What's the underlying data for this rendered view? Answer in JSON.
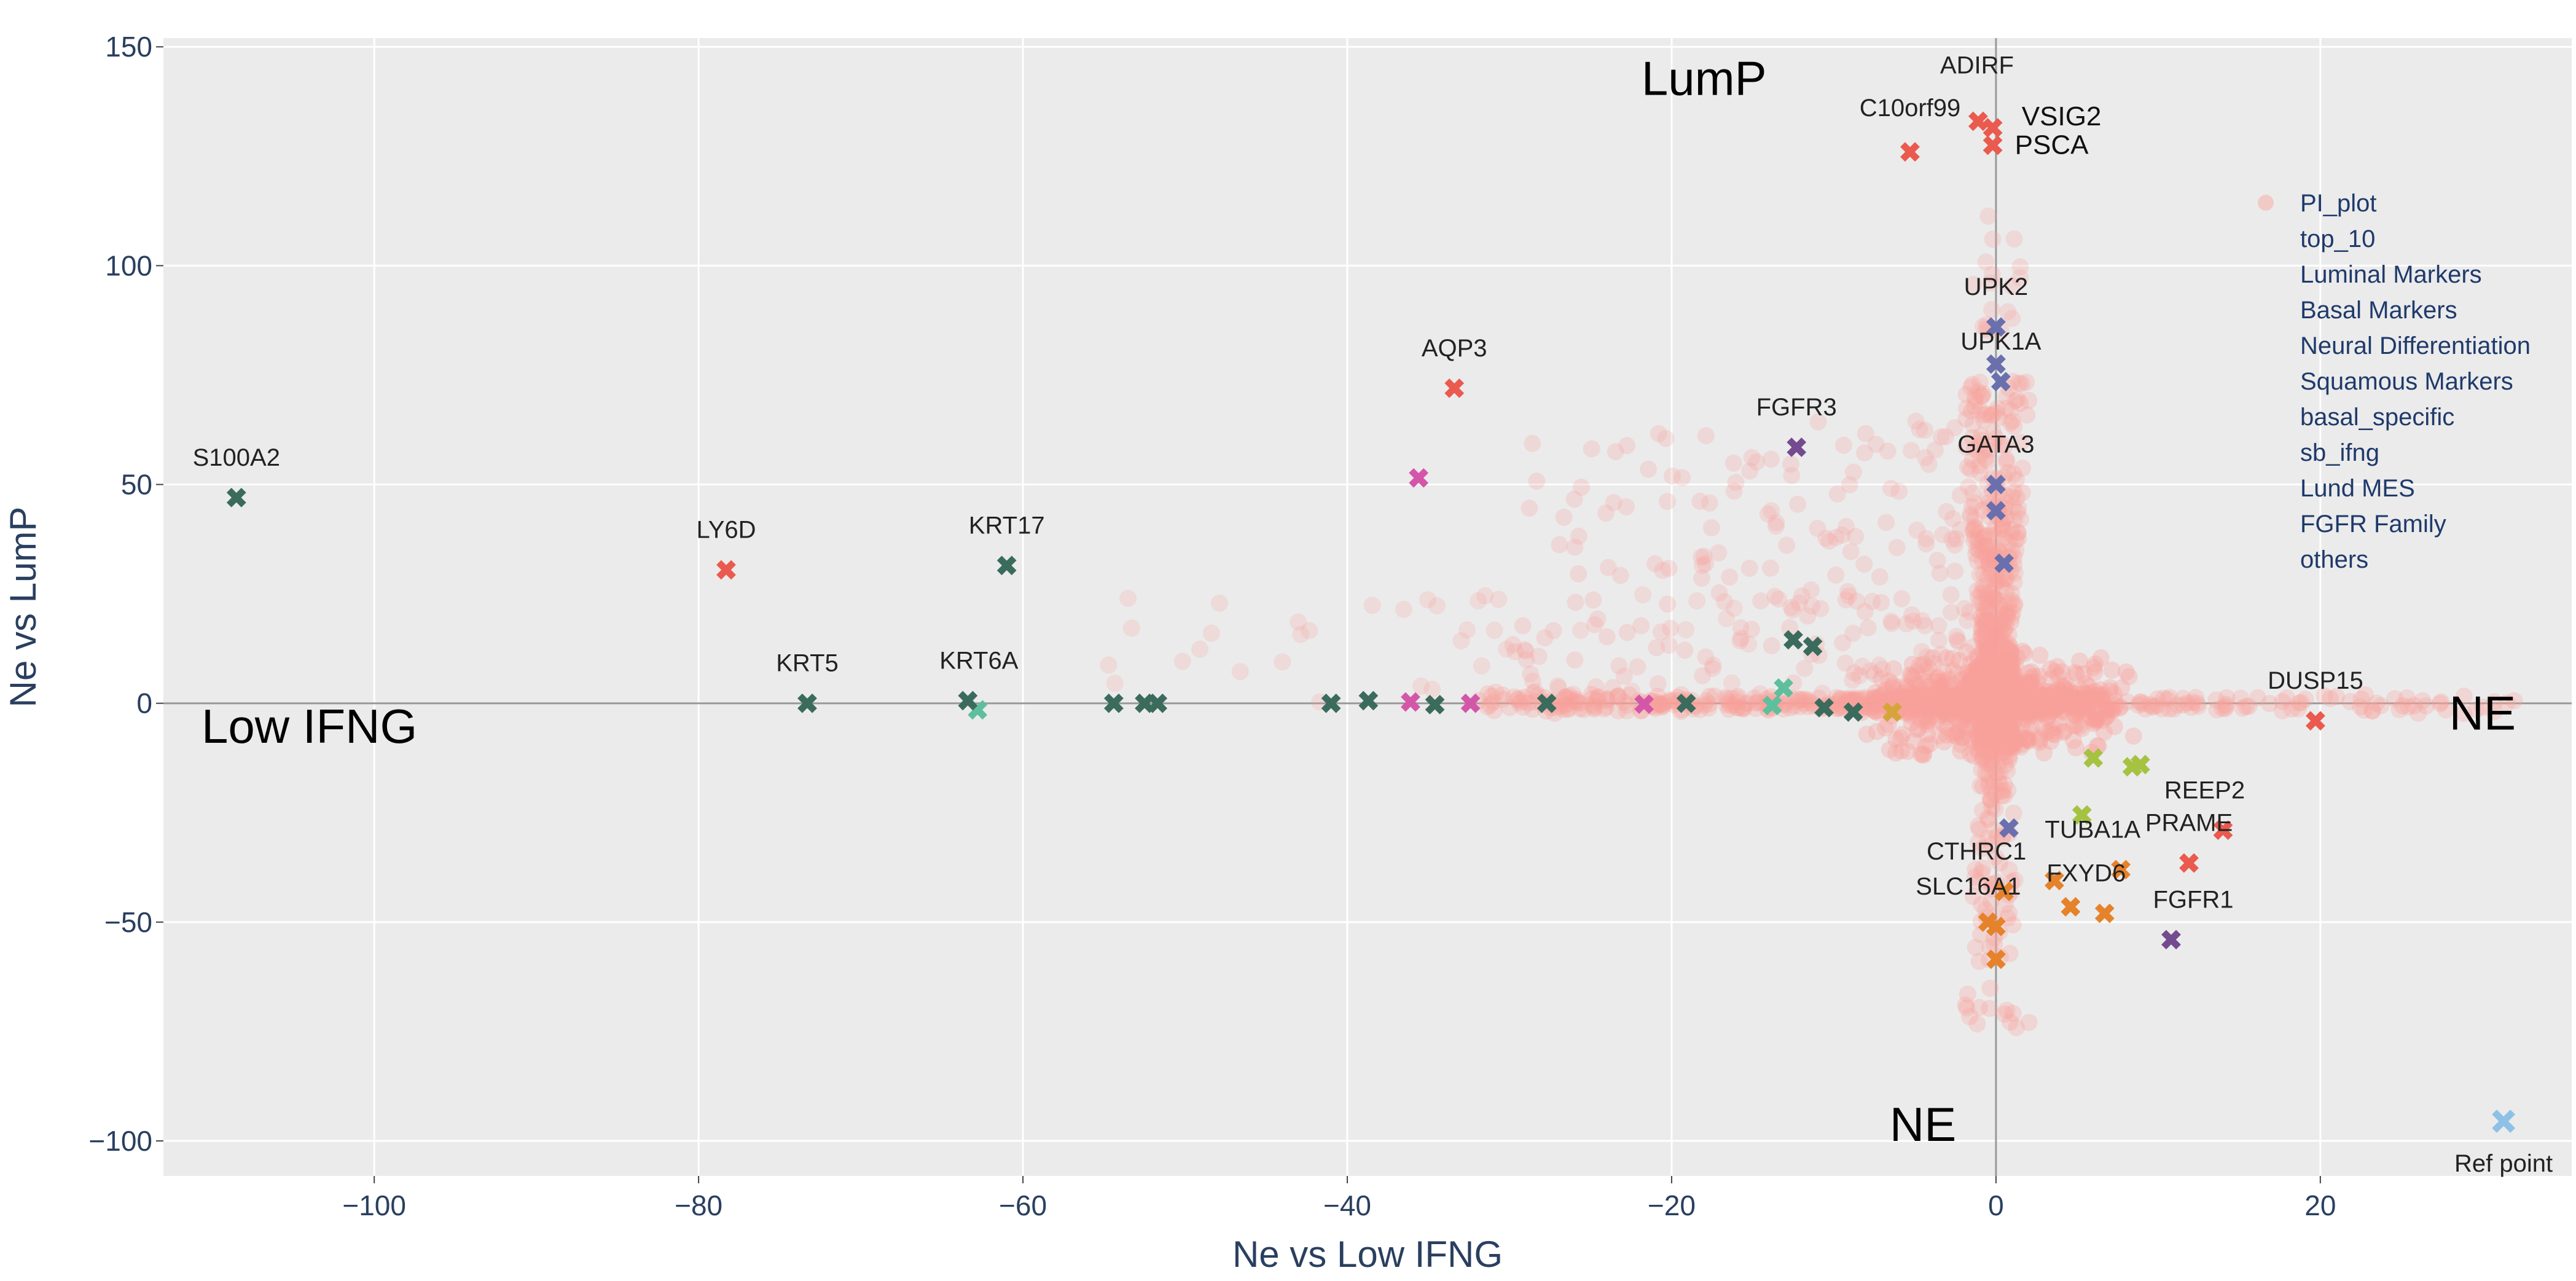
{
  "chart_data": {
    "type": "scatter",
    "xlabel": "Ne vs Low IFNG",
    "ylabel": "Ne vs LumP",
    "xlim": [
      -113,
      35.5
    ],
    "ylim": [
      -108,
      152
    ],
    "xticks": [
      -100,
      -80,
      -60,
      -40,
      -20,
      0,
      20
    ],
    "yticks": [
      -100,
      -50,
      0,
      50,
      100,
      150
    ],
    "grid": true,
    "legend_position": "right",
    "region_labels": [
      {
        "text": "LumP",
        "x": -18,
        "y": 139
      },
      {
        "text": "Low IFNG",
        "x": -104,
        "y": -9
      },
      {
        "text": "NE",
        "x": 30,
        "y": -6
      },
      {
        "text": "NE",
        "x": -4.5,
        "y": -100
      }
    ],
    "colors": {
      "PI_plot": "#f8a19a",
      "top_10": "#e6822a",
      "Luminal Markers": "#6a6fae",
      "Basal Markers": "#5dbf9e",
      "Neural Differentiation": "#a5c240",
      "Squamous Markers": "#d456a9",
      "basal_specific": "#3b6b5c",
      "sb_ifng": "#d6a53a",
      "Lund MES": "#3a8bc4",
      "FGFR Family": "#744b8e",
      "others": "#ea5a4e"
    },
    "legend": [
      "PI_plot",
      "top_10",
      "Luminal Markers",
      "Basal Markers",
      "Neural Differentiation",
      "Squamous Markers",
      "basal_specific",
      "sb_ifng",
      "Lund MES",
      "FGFR Family",
      "others"
    ],
    "series": [
      {
        "name": "top_10",
        "points": [
          {
            "x": 0,
            "y": -58.5
          },
          {
            "x": 0,
            "y": -51
          },
          {
            "x": 0.5,
            "y": -43
          },
          {
            "x": 3.6,
            "y": -40.5
          },
          {
            "x": 4.6,
            "y": -46.5
          },
          {
            "x": 6.7,
            "y": -48
          },
          {
            "x": 7.7,
            "y": -38
          },
          {
            "x": -0.5,
            "y": -50
          }
        ]
      },
      {
        "name": "Luminal Markers",
        "points": [
          {
            "x": 0,
            "y": 86
          },
          {
            "x": 0,
            "y": 77.5
          },
          {
            "x": 0.3,
            "y": 73.5
          },
          {
            "x": 0,
            "y": 50
          },
          {
            "x": 0,
            "y": 44
          },
          {
            "x": 0.5,
            "y": 32
          },
          {
            "x": 0.8,
            "y": -28.5
          }
        ]
      },
      {
        "name": "Basal Markers",
        "points": [
          {
            "x": -62.8,
            "y": -1.5
          },
          {
            "x": -13.1,
            "y": 3.5
          },
          {
            "x": -13.8,
            "y": -0.5
          }
        ]
      },
      {
        "name": "Neural Differentiation",
        "points": [
          {
            "x": 5.3,
            "y": -25.5
          },
          {
            "x": 6,
            "y": -12.5
          },
          {
            "x": 8.4,
            "y": -14.5
          },
          {
            "x": 8.9,
            "y": -14
          }
        ]
      },
      {
        "name": "Squamous Markers",
        "points": [
          {
            "x": -35.6,
            "y": 51.5
          },
          {
            "x": -36.1,
            "y": 0.3
          },
          {
            "x": -32.4,
            "y": 0
          },
          {
            "x": -21.7,
            "y": -0.2
          }
        ]
      },
      {
        "name": "basal_specific",
        "points": [
          {
            "x": -108.5,
            "y": 47
          },
          {
            "x": -73.3,
            "y": 0
          },
          {
            "x": -63.4,
            "y": 0.6
          },
          {
            "x": -61,
            "y": 31.5
          },
          {
            "x": -54.4,
            "y": 0
          },
          {
            "x": -52.5,
            "y": 0
          },
          {
            "x": -51.7,
            "y": 0
          },
          {
            "x": -41,
            "y": 0
          },
          {
            "x": -38.7,
            "y": 0.6
          },
          {
            "x": -34.6,
            "y": -0.3
          },
          {
            "x": -27.7,
            "y": 0
          },
          {
            "x": -19.1,
            "y": 0
          },
          {
            "x": -12.5,
            "y": 14.5
          },
          {
            "x": -11.3,
            "y": 13
          },
          {
            "x": -10.6,
            "y": -1
          },
          {
            "x": -8.8,
            "y": -2
          }
        ]
      },
      {
        "name": "sb_ifng",
        "points": [
          {
            "x": -6.4,
            "y": -2
          }
        ]
      },
      {
        "name": "Lund MES",
        "points": [
          {
            "x": 31.3,
            "y": -95.5
          }
        ]
      },
      {
        "name": "FGFR Family",
        "points": [
          {
            "x": -12.3,
            "y": 58.5
          },
          {
            "x": 10.8,
            "y": -54
          }
        ]
      },
      {
        "name": "others",
        "points": [
          {
            "x": -1.1,
            "y": 133
          },
          {
            "x": -0.2,
            "y": 131.5
          },
          {
            "x": -0.2,
            "y": 127.5
          },
          {
            "x": -5.3,
            "y": 126
          },
          {
            "x": -33.4,
            "y": 72
          },
          {
            "x": -78.3,
            "y": 30.5
          },
          {
            "x": 19.7,
            "y": -4
          },
          {
            "x": 11.9,
            "y": -36.5
          },
          {
            "x": 14,
            "y": -29
          }
        ]
      }
    ],
    "gene_labels": [
      {
        "text": "ADIRF",
        "x": -1.1,
        "y": 133,
        "dx": -2,
        "dy": -78
      },
      {
        "text": "C10orf99",
        "x": -5.3,
        "y": 126,
        "dx": 0,
        "dy": -58
      },
      {
        "text": "VSIG2",
        "x": -0.2,
        "y": 131.5,
        "dx": 112,
        "dy": -4,
        "dark": true
      },
      {
        "text": "PSCA",
        "x": -0.2,
        "y": 127.5,
        "dx": 96,
        "dy": 14,
        "dark": true
      },
      {
        "text": "UPK2",
        "x": 0,
        "y": 86,
        "dx": 0,
        "dy": -52
      },
      {
        "text": "UPK1A",
        "x": 0.3,
        "y": 73.5,
        "dx": 0,
        "dy": -52
      },
      {
        "text": "AQP3",
        "x": -33.4,
        "y": 72,
        "dx": 0,
        "dy": -52
      },
      {
        "text": "FGFR3",
        "x": -12.3,
        "y": 58.5,
        "dx": 0,
        "dy": -52
      },
      {
        "text": "GATA3",
        "x": 0,
        "y": 50,
        "dx": 0,
        "dy": -52
      },
      {
        "text": "S100A2",
        "x": -108.5,
        "y": 47,
        "dx": 0,
        "dy": -52
      },
      {
        "text": "LY6D",
        "x": -78.3,
        "y": 30.5,
        "dx": 0,
        "dy": -52
      },
      {
        "text": "KRT17",
        "x": -61,
        "y": 31.5,
        "dx": 0,
        "dy": -52
      },
      {
        "text": "KRT5",
        "x": -73.3,
        "y": 0,
        "dx": 0,
        "dy": -52
      },
      {
        "text": "KRT6A",
        "x": -63.4,
        "y": 0.6,
        "dx": 18,
        "dy": -52
      },
      {
        "text": "DUSP15",
        "x": 19.7,
        "y": -4,
        "dx": 0,
        "dy": -52
      },
      {
        "text": "REEP2",
        "x": 14,
        "y": -29,
        "dx": -30,
        "dy": -52
      },
      {
        "text": "PRAME",
        "x": 11.9,
        "y": -36.5,
        "dx": 0,
        "dy": -52
      },
      {
        "text": "TUBA1A",
        "x": 7.7,
        "y": -38,
        "dx": -46,
        "dy": -52
      },
      {
        "text": "FXYD6",
        "x": 6.7,
        "y": -48,
        "dx": -30,
        "dy": -52
      },
      {
        "text": "CTHRC1",
        "x": 0.5,
        "y": -43,
        "dx": -45,
        "dy": -52
      },
      {
        "text": "SLC16A1",
        "x": 0,
        "y": -51,
        "dx": -45,
        "dy": -52
      },
      {
        "text": "FGFR1",
        "x": 10.8,
        "y": -54,
        "dx": 36,
        "dy": -52
      },
      {
        "text": "Ref point",
        "x": 31.3,
        "y": -95.5,
        "dx": 0,
        "dy": 82
      }
    ]
  }
}
